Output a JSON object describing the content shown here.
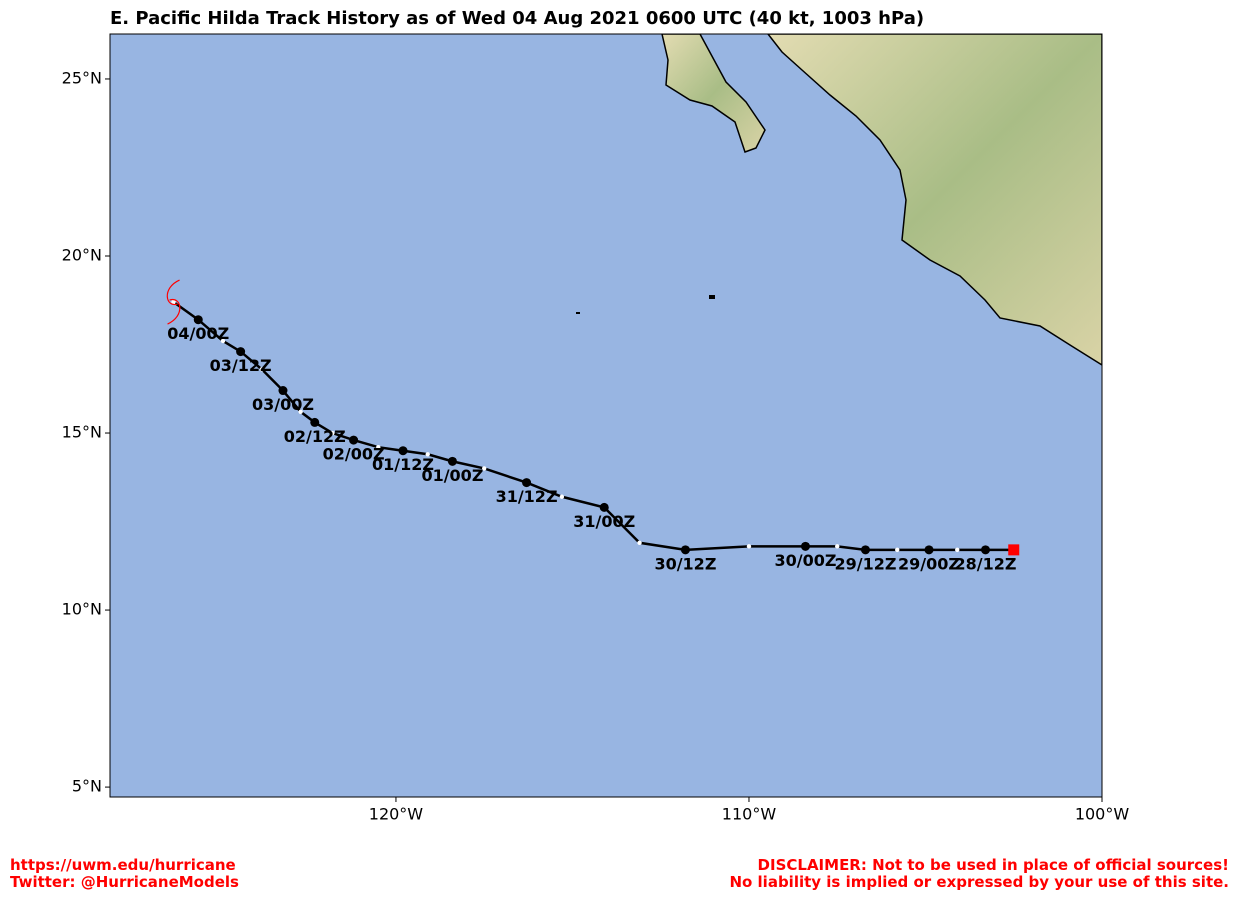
{
  "chart_data": {
    "type": "track",
    "title": "E. Pacific Hilda Track History as of Wed 04 Aug 2021 0600 UTC (40 kt, 1003 hPa)",
    "xlim": [
      -128.1,
      -100
    ],
    "ylim": [
      4.72,
      26.27
    ],
    "xticks": [
      {
        "value": -120,
        "label": "120°W"
      },
      {
        "value": -110,
        "label": "110°W"
      },
      {
        "value": -100,
        "label": "100°W"
      }
    ],
    "yticks": [
      {
        "value": 25,
        "label": "25°N"
      },
      {
        "value": 20,
        "label": "20°N"
      },
      {
        "value": 15,
        "label": "15°N"
      },
      {
        "value": 10,
        "label": "10°N"
      },
      {
        "value": 5,
        "label": "5°N"
      }
    ],
    "track_color": "#000000",
    "start_color": "#ff0000",
    "ocean_color": "#98b5e2",
    "storm_color": "#ff0000",
    "lon": [
      -102.5,
      -103.3,
      -104.1,
      -104.9,
      -105.8,
      -106.7,
      -107.5,
      -108.4,
      -110.0,
      -111.8,
      -113.1,
      -114.1,
      -115.3,
      -116.3,
      -117.5,
      -118.4,
      -119.1,
      -119.8,
      -120.5,
      -121.2,
      -121.8,
      -122.3,
      -122.7,
      -123.2,
      -123.8,
      -124.4,
      -124.9,
      -125.6,
      -126.3
    ],
    "lat": [
      11.7,
      11.7,
      11.7,
      11.7,
      11.7,
      11.7,
      11.8,
      11.8,
      11.8,
      11.7,
      11.9,
      12.9,
      13.2,
      13.6,
      14.0,
      14.2,
      14.4,
      14.5,
      14.6,
      14.8,
      15.0,
      15.3,
      15.6,
      16.2,
      16.8,
      17.3,
      17.6,
      18.2,
      18.7
    ],
    "labels": [
      null,
      "28/12Z",
      null,
      "29/00Z",
      null,
      "29/12Z",
      null,
      "30/00Z",
      null,
      "30/12Z",
      null,
      "31/00Z",
      null,
      "31/12Z",
      null,
      "01/00Z",
      null,
      "01/12Z",
      null,
      "02/00Z",
      null,
      "02/12Z",
      null,
      "03/00Z",
      null,
      "03/12Z",
      null,
      "04/00Z",
      null
    ]
  },
  "footer": {
    "url": "https://uwm.edu/hurricane",
    "twitter": "Twitter: @HurricaneModels",
    "disclaimer": "DISCLAIMER: Not to be used in place of official sources!",
    "liability": "No liability is implied or expressed by your use of this site."
  }
}
